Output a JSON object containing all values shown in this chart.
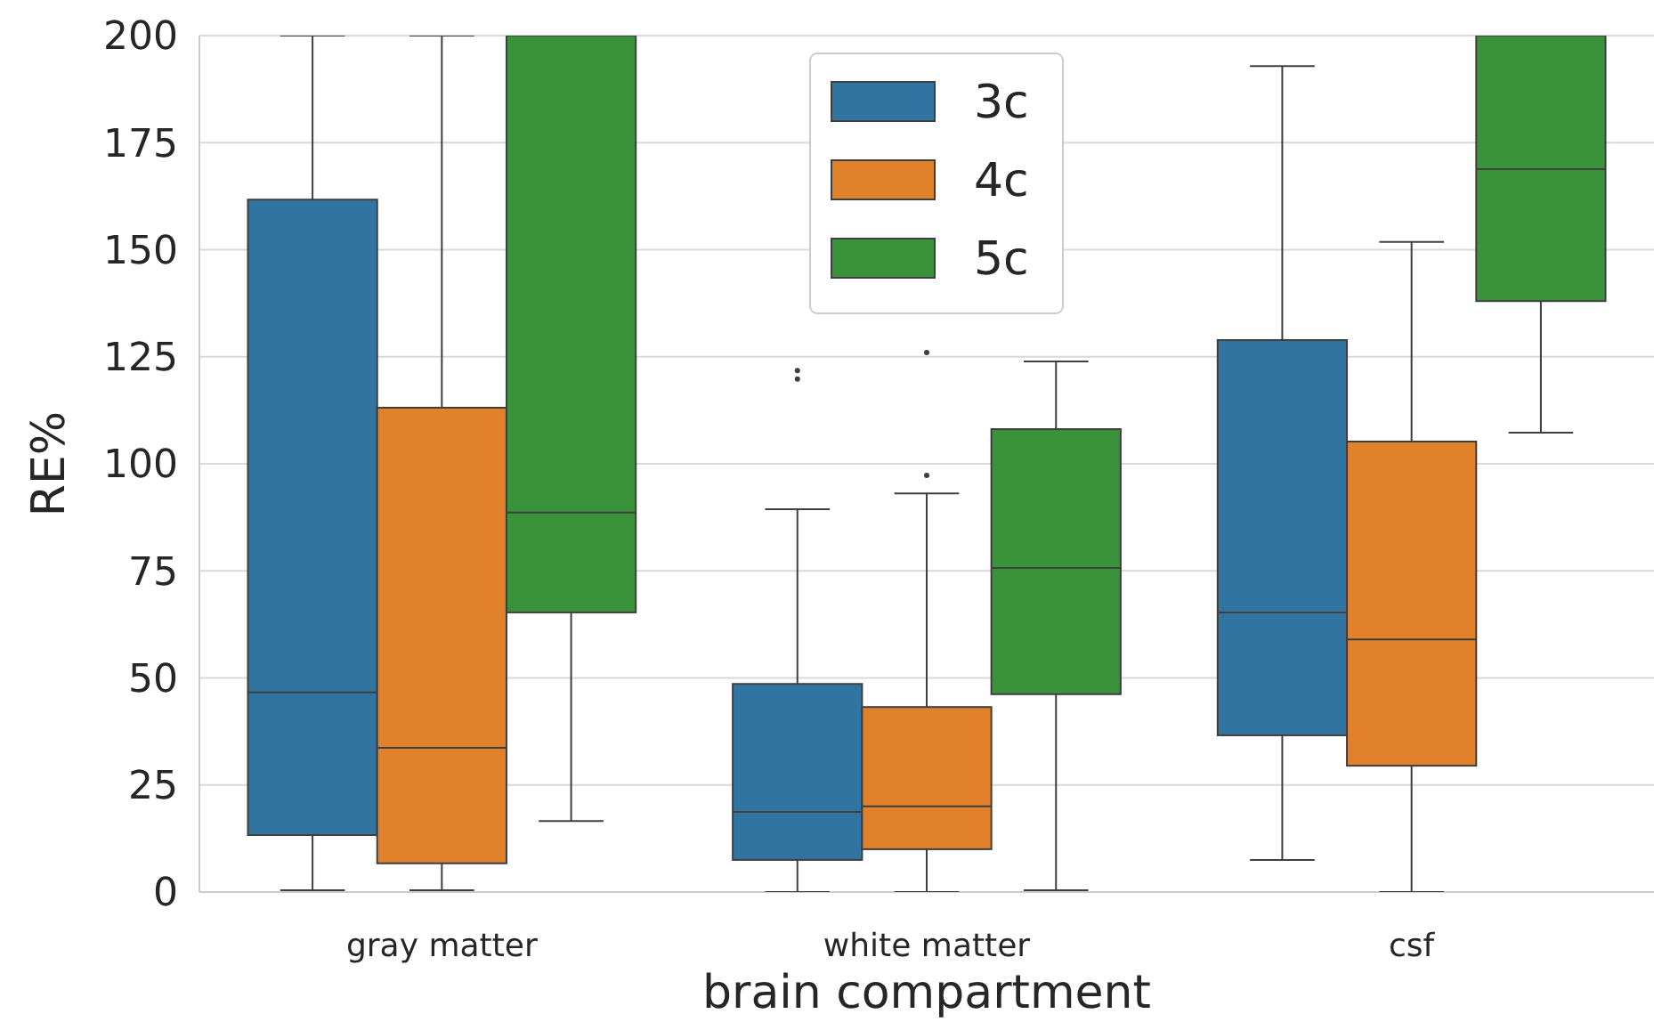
{
  "chart_data": {
    "type": "box",
    "xlabel": "brain compartment",
    "ylabel": "RE%",
    "categories": [
      "gray matter",
      "white matter",
      "csf"
    ],
    "ylim": [
      0,
      200
    ],
    "yticks": [
      0,
      25,
      50,
      75,
      100,
      125,
      150,
      175,
      200
    ],
    "grid": "y",
    "legend": "top",
    "series": [
      {
        "name": "3c",
        "color": "#3274a1",
        "boxes": [
          {
            "low": 0.4,
            "q1": 13.3,
            "median": 46.6,
            "q3": 161.7,
            "high": 200
          },
          {
            "low": 0,
            "q1": 7.5,
            "median": 18.7,
            "q3": 48.6,
            "high": 89.4,
            "outliers": [
              119.8,
              121.8
            ]
          },
          {
            "low": 7.5,
            "q1": 36.6,
            "median": 65.3,
            "q3": 128.9,
            "high": 192.9
          }
        ]
      },
      {
        "name": "4c",
        "color": "#e1812c",
        "boxes": [
          {
            "low": 0.4,
            "q1": 6.7,
            "median": 33.7,
            "q3": 113.1,
            "high": 200
          },
          {
            "low": 0,
            "q1": 10,
            "median": 20,
            "q3": 43.2,
            "high": 93.1,
            "outliers": [
              97.3,
              126
            ]
          },
          {
            "low": 0,
            "q1": 29.5,
            "median": 59,
            "q3": 105.2,
            "high": 151.8
          }
        ]
      },
      {
        "name": "5c",
        "color": "#3a923a",
        "boxes": [
          {
            "low": 16.6,
            "q1": 65.3,
            "median": 88.6,
            "q3": 200,
            "high": 200
          },
          {
            "low": 0.4,
            "q1": 46.2,
            "median": 75.7,
            "q3": 108.1,
            "high": 123.9
          },
          {
            "low": 107.3,
            "q1": 138,
            "median": 168.8,
            "q3": 200,
            "high": 200
          }
        ]
      }
    ]
  }
}
